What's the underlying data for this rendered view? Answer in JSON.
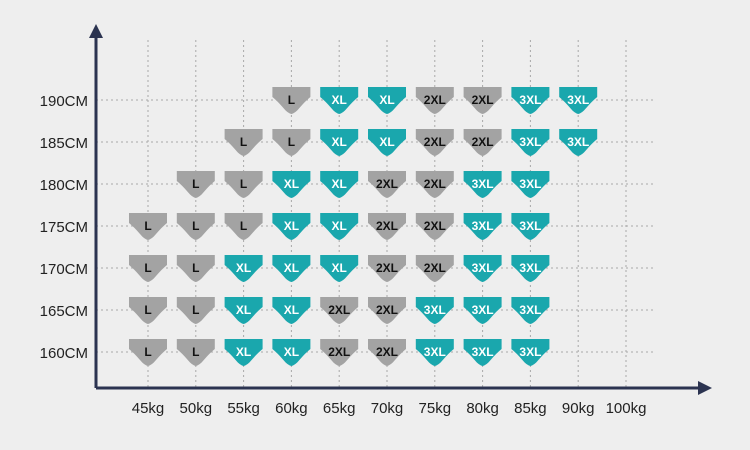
{
  "chart_data": {
    "type": "table",
    "title": "",
    "xlabel": "",
    "ylabel": "",
    "grid": true,
    "x_categories": [
      "45kg",
      "50kg",
      "55kg",
      "60kg",
      "65kg",
      "70kg",
      "75kg",
      "80kg",
      "85kg",
      "90kg",
      "100kg"
    ],
    "y_categories": [
      "190CM",
      "185CM",
      "180CM",
      "175CM",
      "170CM",
      "165CM",
      "160CM"
    ],
    "colors": {
      "L": "#a3a3a3",
      "XL": "#1aa7ad",
      "2XL": "#a3a3a3",
      "3XL": "#1aa7ad"
    },
    "text_colors": {
      "L": "#111111",
      "XL": "#ffffff",
      "2XL": "#111111",
      "3XL": "#ffffff"
    },
    "rows": [
      {
        "height": "190CM",
        "sizes": [
          "",
          "",
          "",
          "L",
          "XL",
          "XL",
          "2XL",
          "2XL",
          "3XL",
          "3XL",
          ""
        ]
      },
      {
        "height": "185CM",
        "sizes": [
          "",
          "",
          "L",
          "L",
          "XL",
          "XL",
          "2XL",
          "2XL",
          "3XL",
          "3XL",
          ""
        ]
      },
      {
        "height": "180CM",
        "sizes": [
          "",
          "L",
          "L",
          "XL",
          "XL",
          "2XL",
          "2XL",
          "3XL",
          "3XL",
          "",
          ""
        ]
      },
      {
        "height": "175CM",
        "sizes": [
          "L",
          "L",
          "L",
          "XL",
          "XL",
          "2XL",
          "2XL",
          "3XL",
          "3XL",
          "",
          ""
        ]
      },
      {
        "height": "170CM",
        "sizes": [
          "L",
          "L",
          "XL",
          "XL",
          "XL",
          "2XL",
          "2XL",
          "3XL",
          "3XL",
          "",
          ""
        ]
      },
      {
        "height": "165CM",
        "sizes": [
          "L",
          "L",
          "XL",
          "XL",
          "2XL",
          "2XL",
          "3XL",
          "3XL",
          "3XL",
          "",
          ""
        ]
      },
      {
        "height": "160CM",
        "sizes": [
          "L",
          "L",
          "XL",
          "XL",
          "2XL",
          "2XL",
          "3XL",
          "3XL",
          "3XL",
          "",
          ""
        ]
      }
    ]
  },
  "style": {
    "background": "#eeeeee",
    "axis_color": "#2b3350",
    "grid_color": "#a8a8a8"
  }
}
